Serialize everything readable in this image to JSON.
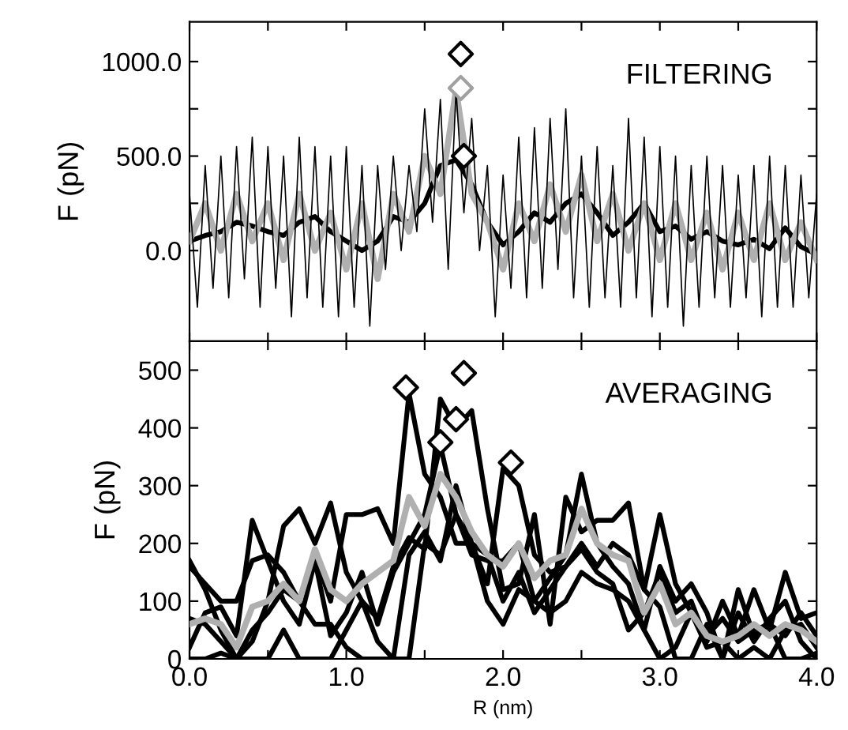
{
  "chart_data": [
    {
      "type": "line",
      "ylabel": "F (pN)",
      "annotations": [
        "FILTERING"
      ],
      "xlim": [
        0,
        4
      ],
      "ylim": [
        -480,
        1210
      ],
      "xticks": [
        {
          "value": 0,
          "label": null
        },
        {
          "value": 0.5,
          "label": null
        },
        {
          "value": 1,
          "label": null
        },
        {
          "value": 1.5,
          "label": null
        },
        {
          "value": 2,
          "label": null
        },
        {
          "value": 2.5,
          "label": null
        },
        {
          "value": 3,
          "label": null
        },
        {
          "value": 3.5,
          "label": null
        },
        {
          "value": 4,
          "label": null
        }
      ],
      "yticks": [
        {
          "value": 0,
          "label": "0.0"
        },
        {
          "value": 250,
          "label": null
        },
        {
          "value": 500,
          "label": "500.0"
        },
        {
          "value": 750,
          "label": null
        },
        {
          "value": 1000,
          "label": "1000.0"
        }
      ],
      "tick_labels": "y",
      "grid": false,
      "legend": false,
      "series": [
        {
          "color": "#000000",
          "x": [
            0,
            0.05,
            0.1,
            0.15,
            0.2,
            0.25,
            0.3,
            0.35,
            0.4,
            0.45,
            0.5,
            0.55,
            0.6,
            0.65,
            0.7,
            0.75,
            0.8,
            0.85,
            0.9,
            0.95,
            1.0,
            1.05,
            1.1,
            1.15,
            1.2,
            1.25,
            1.3,
            1.35,
            1.4,
            1.45,
            1.5,
            1.55,
            1.6,
            1.65,
            1.7,
            1.75,
            1.8,
            1.85,
            1.9,
            1.95,
            2.0,
            2.05,
            2.1,
            2.15,
            2.2,
            2.25,
            2.3,
            2.35,
            2.4,
            2.45,
            2.5,
            2.55,
            2.6,
            2.65,
            2.7,
            2.75,
            2.8,
            2.85,
            2.9,
            2.95,
            3.0,
            3.05,
            3.1,
            3.15,
            3.2,
            3.25,
            3.3,
            3.35,
            3.4,
            3.45,
            3.5,
            3.55,
            3.6,
            3.65,
            3.7,
            3.75,
            3.8,
            3.85,
            3.9,
            3.95,
            4.0
          ],
          "values": [
            300,
            -300,
            450,
            -200,
            500,
            -250,
            550,
            -150,
            600,
            -300,
            550,
            -200,
            500,
            -350,
            600,
            -250,
            550,
            -300,
            500,
            -350,
            550,
            -300,
            450,
            -400,
            450,
            -100,
            500,
            0,
            450,
            100,
            750,
            150,
            800,
            -100,
            850,
            200,
            700,
            0,
            450,
            -350,
            400,
            -200,
            600,
            -250,
            650,
            -200,
            700,
            -100,
            750,
            -250,
            500,
            -300,
            550,
            -250,
            450,
            -300,
            700,
            -250,
            600,
            -350,
            550,
            -300,
            500,
            -400,
            450,
            -300,
            500,
            -250,
            450,
            -300,
            400,
            -250,
            450,
            -350,
            500,
            -300,
            450,
            -300,
            400,
            -250,
            300
          ]
        },
        {
          "color": "#b0b0b0",
          "x": [
            0,
            0.1,
            0.2,
            0.3,
            0.4,
            0.5,
            0.6,
            0.7,
            0.8,
            0.9,
            1.0,
            1.1,
            1.2,
            1.3,
            1.4,
            1.5,
            1.6,
            1.7,
            1.8,
            1.9,
            2.0,
            2.1,
            2.2,
            2.3,
            2.4,
            2.5,
            2.6,
            2.7,
            2.8,
            2.9,
            3.0,
            3.1,
            3.2,
            3.3,
            3.4,
            3.5,
            3.6,
            3.7,
            3.8,
            3.9,
            4.0
          ],
          "values": [
            50,
            250,
            0,
            300,
            50,
            250,
            -50,
            300,
            0,
            200,
            -100,
            250,
            -150,
            300,
            100,
            500,
            300,
            850,
            300,
            150,
            -100,
            250,
            50,
            350,
            100,
            400,
            50,
            300,
            0,
            250,
            -50,
            250,
            -50,
            200,
            -100,
            200,
            -50,
            250,
            -50,
            150,
            -50
          ]
        },
        {
          "color": "#000000",
          "x": [
            0,
            0.1,
            0.2,
            0.3,
            0.4,
            0.5,
            0.6,
            0.7,
            0.8,
            0.9,
            1.0,
            1.1,
            1.2,
            1.3,
            1.4,
            1.5,
            1.6,
            1.7,
            1.8,
            1.9,
            2.0,
            2.1,
            2.2,
            2.3,
            2.4,
            2.5,
            2.6,
            2.7,
            2.8,
            2.9,
            3.0,
            3.1,
            3.2,
            3.3,
            3.4,
            3.5,
            3.6,
            3.7,
            3.8,
            3.9,
            4.0
          ],
          "values": [
            50,
            80,
            100,
            150,
            130,
            100,
            80,
            150,
            180,
            100,
            50,
            0,
            50,
            180,
            150,
            250,
            450,
            480,
            350,
            150,
            30,
            100,
            200,
            150,
            250,
            300,
            200,
            80,
            150,
            250,
            100,
            130,
            60,
            100,
            50,
            30,
            60,
            10,
            120,
            20,
            -20
          ]
        },
        {
          "type": "scatter",
          "color": "#000000",
          "marker": "diamond",
          "x": [
            1.73,
            1.75
          ],
          "values": [
            1040,
            500
          ]
        },
        {
          "type": "scatter",
          "color": "#a0a0a0",
          "marker": "diamond",
          "x": [
            1.73
          ],
          "values": [
            860
          ]
        }
      ]
    },
    {
      "type": "line",
      "xlabel": "R (nm)",
      "ylabel": "F (pN)",
      "annotations": [
        "AVERAGING"
      ],
      "xlim": [
        0,
        4
      ],
      "ylim": [
        0,
        550
      ],
      "xticks": [
        {
          "value": 0,
          "label": "0.0"
        },
        {
          "value": 0.5,
          "label": null
        },
        {
          "value": 1,
          "label": "1.0"
        },
        {
          "value": 1.5,
          "label": null
        },
        {
          "value": 2,
          "label": "2.0"
        },
        {
          "value": 2.5,
          "label": null
        },
        {
          "value": 3,
          "label": "3.0"
        },
        {
          "value": 3.5,
          "label": null
        },
        {
          "value": 4,
          "label": "4.0"
        }
      ],
      "yticks": [
        0,
        100,
        200,
        300,
        400,
        500
      ],
      "grid": false,
      "legend": false,
      "series": [
        {
          "color": "#000000",
          "x": [
            0,
            0.1,
            0.2,
            0.3,
            0.4,
            0.5,
            0.6,
            0.7,
            0.8,
            0.9,
            1.0,
            1.1,
            1.2,
            1.3,
            1.4,
            1.5,
            1.6,
            1.7,
            1.8,
            1.9,
            2.0,
            2.1,
            2.2,
            2.3,
            2.4,
            2.5,
            2.6,
            2.7,
            2.8,
            2.9,
            3.0,
            3.1,
            3.2,
            3.3,
            3.4,
            3.5,
            3.6,
            3.7,
            3.8,
            3.9,
            4.0
          ],
          "values": [
            160,
            130,
            100,
            100,
            170,
            180,
            150,
            100,
            180,
            100,
            250,
            250,
            260,
            200,
            460,
            320,
            280,
            200,
            200,
            180,
            100,
            150,
            80,
            120,
            160,
            190,
            150,
            130,
            50,
            80,
            150,
            80,
            100,
            30,
            100,
            40,
            120,
            50,
            150,
            70,
            80
          ]
        },
        {
          "color": "#000000",
          "x": [
            0,
            0.1,
            0.2,
            0.3,
            0.4,
            0.5,
            0.6,
            0.7,
            0.8,
            0.9,
            1.0,
            1.1,
            1.2,
            1.3,
            1.4,
            1.5,
            1.6,
            1.7,
            1.8,
            1.9,
            2.0,
            2.1,
            2.2,
            2.3,
            2.4,
            2.5,
            2.6,
            2.7,
            2.8,
            2.9,
            3.0,
            3.1,
            3.2,
            3.3,
            3.4,
            3.5,
            3.6,
            3.7,
            3.8,
            3.9,
            4.0
          ],
          "values": [
            0,
            0,
            10,
            0,
            30,
            100,
            230,
            260,
            200,
            270,
            150,
            100,
            70,
            160,
            210,
            190,
            450,
            400,
            430,
            260,
            120,
            130,
            250,
            60,
            280,
            220,
            240,
            240,
            270,
            120,
            90,
            0,
            0,
            60,
            0,
            120,
            40,
            60,
            0,
            0,
            10
          ]
        },
        {
          "color": "#000000",
          "x": [
            0,
            0.1,
            0.2,
            0.3,
            0.4,
            0.5,
            0.6,
            0.7,
            0.8,
            0.9,
            1.0,
            1.1,
            1.2,
            1.3,
            1.4,
            1.5,
            1.6,
            1.7,
            1.8,
            1.9,
            2.0,
            2.1,
            2.2,
            2.3,
            2.4,
            2.5,
            2.6,
            2.7,
            2.8,
            2.9,
            3.0,
            3.1,
            3.2,
            3.3,
            3.4,
            3.5,
            3.6,
            3.7,
            3.8,
            3.9,
            4.0
          ],
          "values": [
            20,
            80,
            90,
            40,
            240,
            170,
            100,
            60,
            170,
            40,
            80,
            150,
            60,
            150,
            200,
            250,
            370,
            250,
            180,
            170,
            170,
            200,
            100,
            140,
            180,
            320,
            200,
            160,
            130,
            50,
            160,
            100,
            130,
            80,
            0,
            80,
            30,
            70,
            100,
            30,
            0
          ]
        },
        {
          "color": "#000000",
          "x": [
            0,
            0.1,
            0.2,
            0.3,
            0.4,
            0.5,
            0.6,
            0.7,
            0.8,
            0.9,
            1.0,
            1.1,
            1.2,
            1.3,
            1.4,
            1.5,
            1.6,
            1.7,
            1.8,
            1.9,
            2.0,
            2.1,
            2.2,
            2.3,
            2.4,
            2.5,
            2.6,
            2.7,
            2.8,
            2.9,
            3.0,
            3.1,
            3.2,
            3.3,
            3.4,
            3.5,
            3.6,
            3.7,
            3.8,
            3.9,
            4.0
          ],
          "values": [
            70,
            60,
            30,
            0,
            50,
            80,
            120,
            100,
            60,
            60,
            20,
            0,
            0,
            0,
            0,
            200,
            180,
            250,
            200,
            130,
            330,
            300,
            180,
            150,
            160,
            200,
            160,
            200,
            180,
            120,
            250,
            130,
            80,
            20,
            30,
            0,
            20,
            0,
            50,
            60,
            20
          ]
        },
        {
          "color": "#000000",
          "x": [
            0,
            0.1,
            0.2,
            0.3,
            0.4,
            0.5,
            0.6,
            0.7,
            0.8,
            0.9,
            1.0,
            1.1,
            1.2,
            1.3,
            1.4,
            1.5,
            1.6,
            1.7,
            1.8,
            1.9,
            2.0,
            2.1,
            2.2,
            2.3,
            2.4,
            2.5,
            2.6,
            2.7,
            2.8,
            2.9,
            3.0,
            3.1,
            3.2,
            3.3,
            3.4,
            3.5,
            3.6,
            3.7,
            3.8,
            3.9,
            4.0
          ],
          "values": [
            170,
            120,
            50,
            0,
            0,
            0,
            50,
            0,
            0,
            0,
            50,
            100,
            30,
            0,
            180,
            220,
            170,
            300,
            200,
            100,
            60,
            120,
            100,
            80,
            100,
            150,
            130,
            120,
            100,
            50,
            0,
            20,
            80,
            40,
            70,
            30,
            50,
            60,
            40,
            80,
            40
          ]
        },
        {
          "color": "#b0b0b0",
          "x": [
            0,
            0.1,
            0.2,
            0.3,
            0.4,
            0.5,
            0.6,
            0.7,
            0.8,
            0.9,
            1.0,
            1.1,
            1.2,
            1.3,
            1.4,
            1.5,
            1.6,
            1.7,
            1.8,
            1.9,
            2.0,
            2.1,
            2.2,
            2.3,
            2.4,
            2.5,
            2.6,
            2.7,
            2.8,
            2.9,
            3.0,
            3.1,
            3.2,
            3.3,
            3.4,
            3.5,
            3.6,
            3.7,
            3.8,
            3.9,
            4.0
          ],
          "values": [
            60,
            70,
            60,
            20,
            90,
            100,
            130,
            100,
            190,
            120,
            100,
            130,
            150,
            170,
            280,
            230,
            320,
            280,
            220,
            180,
            160,
            200,
            140,
            170,
            180,
            260,
            200,
            180,
            170,
            80,
            130,
            60,
            80,
            40,
            30,
            40,
            60,
            40,
            60,
            50,
            30
          ]
        },
        {
          "type": "scatter",
          "color": "#000000",
          "marker": "diamond",
          "x": [
            1.38,
            1.6,
            1.75,
            2.05,
            1.7
          ],
          "values": [
            470,
            375,
            495,
            340,
            415
          ]
        }
      ]
    }
  ]
}
